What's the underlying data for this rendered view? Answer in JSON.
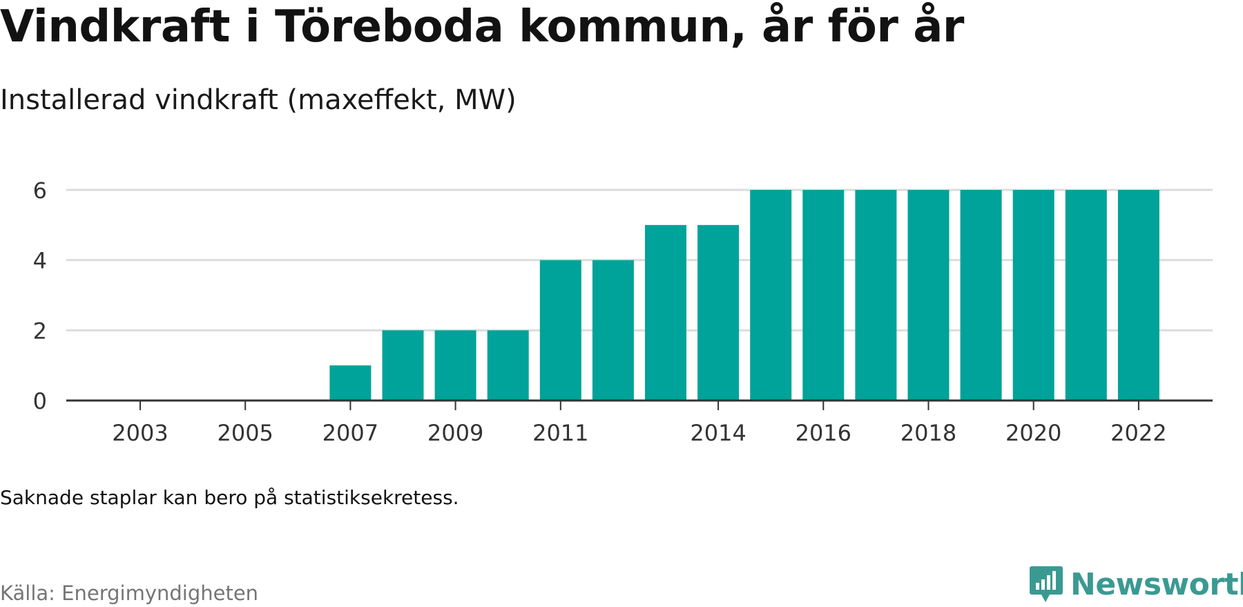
{
  "header": {
    "title": "Vindkraft i Töreboda kommun, år för år",
    "subtitle": "Installerad vindkraft (maxeffekt, MW)"
  },
  "footer": {
    "note": "Saknade staplar kan bero på statistiksekretess.",
    "source": "Källa: Energimyndigheten",
    "logo_text": "Newsworthy"
  },
  "colors": {
    "bar": "#00a399",
    "grid": "#dcdcdc",
    "axis": "#333333",
    "logo": "#3a9a92",
    "source": "#757575"
  },
  "chart_data": {
    "type": "bar",
    "categories": [
      2003,
      2004,
      2005,
      2006,
      2007,
      2008,
      2009,
      2010,
      2011,
      2012,
      2013,
      2014,
      2015,
      2016,
      2017,
      2018,
      2019,
      2020,
      2021,
      2022
    ],
    "values": [
      0,
      0,
      0,
      0,
      1,
      2,
      2,
      2,
      4,
      4,
      5,
      5,
      6,
      6,
      6,
      6,
      6,
      6,
      6,
      6
    ],
    "x_tick_labels": [
      "2003",
      "2005",
      "2007",
      "2009",
      "2011",
      "2014",
      "2016",
      "2018",
      "2020",
      "2022"
    ],
    "y_ticks": [
      0,
      2,
      4,
      6
    ],
    "ylim": [
      0,
      6.3
    ],
    "grid": true,
    "xlabel": "",
    "ylabel": ""
  }
}
